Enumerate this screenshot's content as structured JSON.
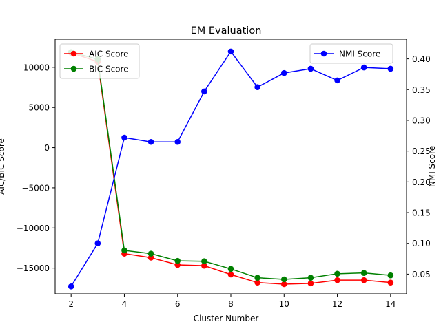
{
  "chart_data": {
    "type": "line",
    "title": "EM Evaluation",
    "xlabel": "Cluster Number",
    "ylabel_left": "AIC/BIC Score",
    "ylabel_right": "NMI Score",
    "x": [
      2,
      3,
      4,
      5,
      6,
      7,
      8,
      9,
      10,
      11,
      12,
      13,
      14
    ],
    "xlim": [
      1.4,
      14.6
    ],
    "ylim_left": [
      -18200,
      13500
    ],
    "ylim_right": [
      0.018,
      0.432
    ],
    "xticks": [
      2,
      4,
      6,
      8,
      10,
      12,
      14
    ],
    "yticks_left": [
      -15000,
      -10000,
      -5000,
      0,
      5000,
      10000
    ],
    "yticks_left_labels": [
      "−15000",
      "−10000",
      "−5000",
      "0",
      "5000",
      "10000"
    ],
    "yticks_right": [
      0.05,
      0.1,
      0.15,
      0.2,
      0.25,
      0.3,
      0.35,
      0.4
    ],
    "yticks_right_labels": [
      "0.05",
      "0.10",
      "0.15",
      "0.20",
      "0.25",
      "0.30",
      "0.35",
      "0.40"
    ],
    "series_left": [
      {
        "name": "AIC Score",
        "color": "#ff0000",
        "values": [
          11800,
          10700,
          -13200,
          -13700,
          -14600,
          -14700,
          -15800,
          -16800,
          -17000,
          -16900,
          -16500,
          -16500,
          -16800
        ]
      },
      {
        "name": "BIC Score",
        "color": "#008000",
        "values": [
          11900,
          11000,
          -12800,
          -13200,
          -14100,
          -14150,
          -15100,
          -16200,
          -16400,
          -16200,
          -15700,
          -15600,
          -15900
        ]
      }
    ],
    "series_right": [
      {
        "name": "NMI Score",
        "color": "#0000ff",
        "values": [
          0.03,
          0.1,
          0.272,
          0.265,
          0.265,
          0.347,
          0.412,
          0.354,
          0.377,
          0.384,
          0.365,
          0.386,
          0.384
        ]
      }
    ],
    "legend_left_placement": "upper-left",
    "legend_right_placement": "upper-right",
    "grid": false
  }
}
